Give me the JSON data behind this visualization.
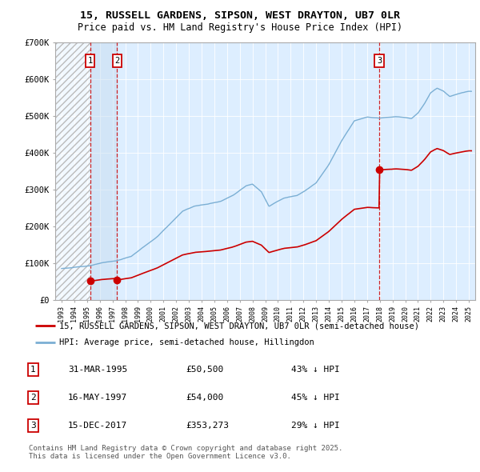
{
  "title1": "15, RUSSELL GARDENS, SIPSON, WEST DRAYTON, UB7 0LR",
  "title2": "Price paid vs. HM Land Registry's House Price Index (HPI)",
  "sale_prices": [
    50500,
    54000,
    353273
  ],
  "sale_labels": [
    "1",
    "2",
    "3"
  ],
  "sale_year_nums": [
    1995.25,
    1997.37,
    2017.96
  ],
  "hpi_color": "#7BAFD4",
  "sale_color": "#cc0000",
  "legend1": "15, RUSSELL GARDENS, SIPSON, WEST DRAYTON, UB7 0LR (semi-detached house)",
  "legend2": "HPI: Average price, semi-detached house, Hillingdon",
  "table_data": [
    [
      "1",
      "31-MAR-1995",
      "£50,500",
      "43% ↓ HPI"
    ],
    [
      "2",
      "16-MAY-1997",
      "£54,000",
      "45% ↓ HPI"
    ],
    [
      "3",
      "15-DEC-2017",
      "£353,273",
      "29% ↓ HPI"
    ]
  ],
  "footer": "Contains HM Land Registry data © Crown copyright and database right 2025.\nThis data is licensed under the Open Government Licence v3.0.",
  "ylim": [
    0,
    700000
  ],
  "yticks": [
    0,
    100000,
    200000,
    300000,
    400000,
    500000,
    600000,
    700000
  ],
  "ytick_labels": [
    "£0",
    "£100K",
    "£200K",
    "£300K",
    "£400K",
    "£500K",
    "£600K",
    "£700K"
  ],
  "bg_color": "#ddeeff",
  "hatch_bg": "#e8e8e8"
}
